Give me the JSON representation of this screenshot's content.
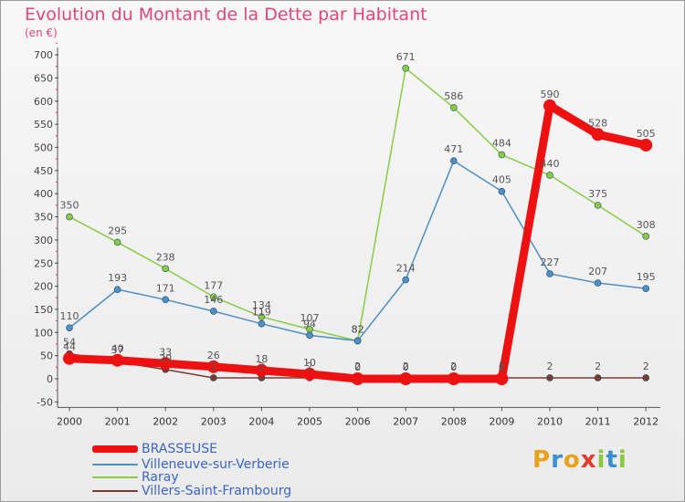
{
  "header": {
    "title": "Evolution du Montant de la Dette par Habitant",
    "subtitle": "(en €)"
  },
  "chart_data": {
    "type": "line",
    "title": "Evolution du Montant de la Dette par Habitant",
    "ylabel": "(en €)",
    "xlabel": "",
    "ylim": [
      -50,
      700
    ],
    "yticks": [
      -50,
      0,
      50,
      100,
      150,
      200,
      250,
      300,
      350,
      400,
      450,
      500,
      550,
      600,
      650,
      700
    ],
    "categories": [
      "2000",
      "2001",
      "2002",
      "2003",
      "2004",
      "2005",
      "2006",
      "2007",
      "2008",
      "2009",
      "2010",
      "2011",
      "2012"
    ],
    "series": [
      {
        "name": "BRASSEUSE",
        "color": "#ee1111",
        "values": [
          44,
          40,
          33,
          26,
          18,
          10,
          0,
          0,
          0,
          0,
          590,
          528,
          505
        ]
      },
      {
        "name": "Villeneuve-sur-Verberie",
        "color": "#4d8fc7",
        "values": [
          110,
          193,
          171,
          146,
          119,
          94,
          82,
          214,
          471,
          405,
          227,
          207,
          195
        ]
      },
      {
        "name": "Raray",
        "color": "#88cc44",
        "values": [
          350,
          295,
          238,
          177,
          134,
          107,
          82,
          671,
          586,
          484,
          440,
          375,
          308
        ]
      },
      {
        "name": "Villers-Saint-Frambourg",
        "color": "#7a3a32",
        "values": [
          54,
          37,
          20,
          2,
          2,
          2,
          2,
          2,
          2,
          2,
          2,
          2,
          2
        ]
      }
    ],
    "grid": false,
    "legend": "bottom-left"
  },
  "legend": [
    {
      "label": "BRASSEUSE",
      "color": "#ee1111"
    },
    {
      "label": "Villeneuve-sur-Verberie",
      "color": "#4d8fc7"
    },
    {
      "label": "Raray",
      "color": "#88cc44"
    },
    {
      "label": "Villers-Saint-Frambourg",
      "color": "#7a3a32"
    }
  ],
  "logo": {
    "text": "Proxiti",
    "letters": [
      {
        "ch": "P",
        "color": "#e8a21a"
      },
      {
        "ch": "r",
        "color": "#3b8ed0"
      },
      {
        "ch": "o",
        "color": "#e8a21a"
      },
      {
        "ch": "x",
        "color": "#e53b2c"
      },
      {
        "ch": "i",
        "color": "#8cc63e"
      },
      {
        "ch": "t",
        "color": "#3b8ed0"
      },
      {
        "ch": "i",
        "color": "#8cc63e"
      }
    ]
  }
}
